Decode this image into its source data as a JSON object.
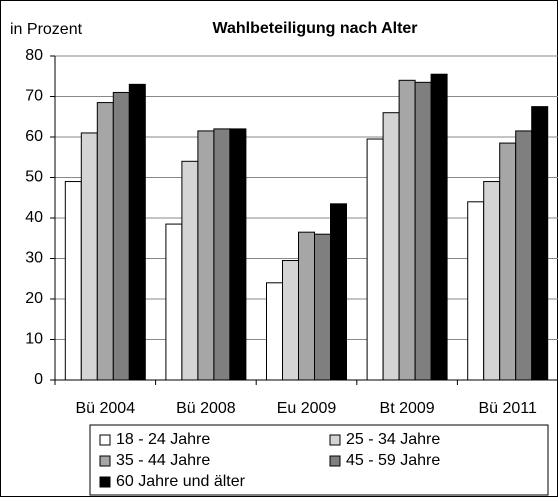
{
  "chart_data": {
    "type": "bar",
    "title": "Wahlbeteiligung nach Alter",
    "y_label": "in Prozent",
    "categories": [
      "Bü 2004",
      "Bü 2008",
      "Eu 2009",
      "Bt 2009",
      "Bü 2011"
    ],
    "series": [
      {
        "name": "18 - 24 Jahre",
        "color": "#ffffff",
        "values": [
          49,
          38.5,
          24,
          59.5,
          44
        ]
      },
      {
        "name": "25 - 34 Jahre",
        "color": "#d4d4d4",
        "values": [
          61,
          54,
          29.5,
          66,
          49
        ]
      },
      {
        "name": "35 - 44 Jahre",
        "color": "#a6a6a6",
        "values": [
          68.5,
          61.5,
          36.5,
          74,
          58.5
        ]
      },
      {
        "name": "45 - 59 Jahre",
        "color": "#7f7f7f",
        "values": [
          71,
          62,
          36,
          73.5,
          61.5
        ]
      },
      {
        "name": "60 Jahre und älter",
        "color": "#000000",
        "values": [
          73,
          62,
          43.5,
          75.5,
          67.5
        ]
      }
    ],
    "ylim": [
      0,
      80
    ],
    "yticks": [
      0,
      10,
      20,
      30,
      40,
      50,
      60,
      70,
      80
    ],
    "grid": true
  }
}
